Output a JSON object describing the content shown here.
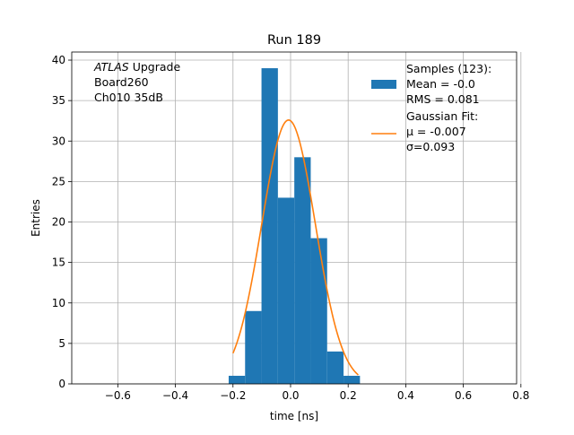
{
  "chart_data": {
    "type": "bar",
    "title": "Run 189",
    "xlabel": "time [ns]",
    "ylabel": "Entries",
    "xlim": [
      -0.76,
      0.785
    ],
    "ylim": [
      0,
      41
    ],
    "grid": true,
    "xticks": [
      -0.6,
      -0.4,
      -0.2,
      0.0,
      0.2,
      0.4,
      0.6,
      0.8
    ],
    "xtick_labels": [
      "−0.6",
      "−0.4",
      "−0.2",
      "0.0",
      "0.2",
      "0.4",
      "0.6",
      "0.8"
    ],
    "yticks": [
      0,
      5,
      10,
      15,
      20,
      25,
      30,
      35,
      40
    ],
    "ytick_labels": [
      "0",
      "5",
      "10",
      "15",
      "20",
      "25",
      "30",
      "35",
      "40"
    ],
    "bins": [
      -0.215,
      -0.158,
      -0.101,
      -0.044,
      0.013,
      0.07,
      0.127,
      0.184,
      0.241
    ],
    "counts": [
      1,
      9,
      39,
      23,
      28,
      18,
      4,
      1
    ],
    "histogram_color": "#1f77b4",
    "fit": {
      "name": "Gaussian Fit:",
      "mu": -0.007,
      "sigma": 0.093,
      "amplitude": 32.6,
      "x_range": [
        -0.2,
        0.235
      ],
      "color": "#ff7f0e"
    },
    "annotation": {
      "atlas": "ATLAS",
      "line1_rest": " Upgrade",
      "line2": " Board260",
      "line3": " Ch010 35dB"
    },
    "legend": {
      "placement": "upper-right",
      "hist_lines": [
        "Samples (123):",
        " Mean = -0.0",
        " RMS = 0.081"
      ],
      "fit_title": "Gaussian Fit:",
      "fit_mu_label": " μ = -0.007",
      "fit_sigma_label": " σ=0.093"
    }
  }
}
